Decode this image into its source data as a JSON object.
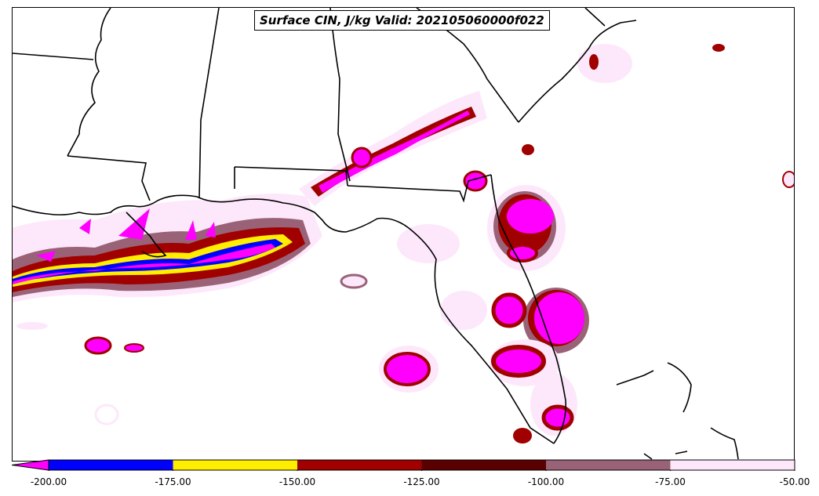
{
  "title": "Surface CIN, J/kg Valid: 202105060000f022",
  "colorbar": {
    "extend": "min",
    "extension_color": "#ff00ff",
    "bins": [
      {
        "from": -200,
        "to": -175,
        "color": "#0000ff"
      },
      {
        "from": -175,
        "to": -150,
        "color": "#ffee00"
      },
      {
        "from": -150,
        "to": -125,
        "color": "#a00000"
      },
      {
        "from": -125,
        "to": -100,
        "color": "#5a0000"
      },
      {
        "from": -100,
        "to": -75,
        "color": "#9a6277"
      },
      {
        "from": -75,
        "to": -50,
        "color": "#fde8fb"
      }
    ],
    "tick_labels": [
      "-200.00",
      "-175.00",
      "-150.00",
      "-125.00",
      "-100.00",
      "-75.00",
      "-50.00"
    ]
  },
  "map": {
    "region": "Southeastern United States / Gulf of Mexico",
    "boundaries": "state and coastline outlines",
    "field": "Surface CIN"
  }
}
